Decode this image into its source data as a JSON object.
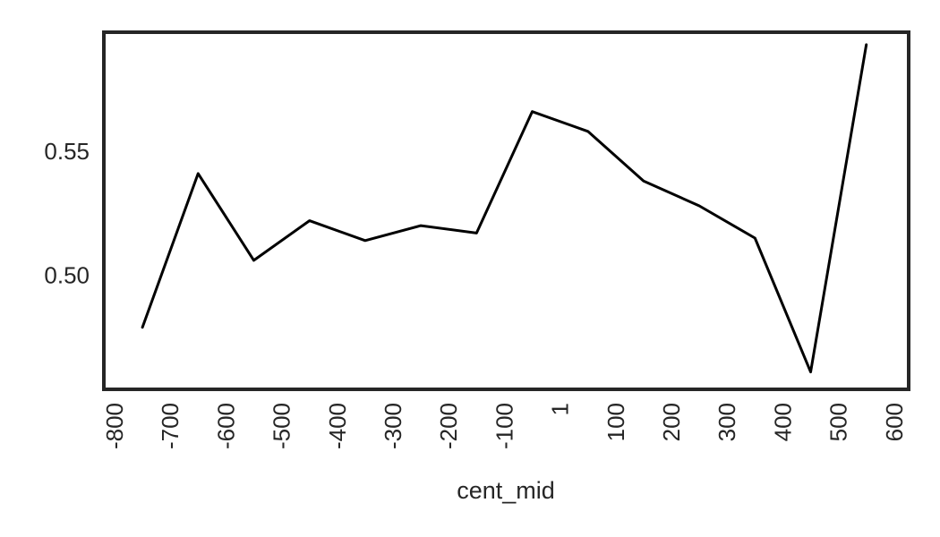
{
  "chart_data": {
    "type": "line",
    "title": "",
    "xlabel": "cent_mid",
    "ylabel": "",
    "x_tick_labels": [
      "-800",
      "-700",
      "-600",
      "-500",
      "-400",
      "-300",
      "-200",
      "-100",
      "1",
      "100",
      "200",
      "300",
      "400",
      "500",
      "600"
    ],
    "y_ticks": [
      0.5,
      0.55
    ],
    "y_tick_labels": [
      "0.50",
      "0.55"
    ],
    "ylim": [
      0.454,
      0.598
    ],
    "grid": false,
    "legend": "none",
    "x_category_count": 15,
    "series": [
      {
        "color": "#000000",
        "points": [
          {
            "x": -750,
            "y": 0.479
          },
          {
            "x": -650,
            "y": 0.541
          },
          {
            "x": -550,
            "y": 0.506
          },
          {
            "x": -450,
            "y": 0.522
          },
          {
            "x": -350,
            "y": 0.514
          },
          {
            "x": -250,
            "y": 0.52
          },
          {
            "x": -150,
            "y": 0.517
          },
          {
            "x": -50,
            "y": 0.566
          },
          {
            "x": 50,
            "y": 0.558
          },
          {
            "x": 150,
            "y": 0.538
          },
          {
            "x": 250,
            "y": 0.528
          },
          {
            "x": 350,
            "y": 0.515
          },
          {
            "x": 450,
            "y": 0.461
          },
          {
            "x": 550,
            "y": 0.593
          }
        ]
      }
    ]
  }
}
